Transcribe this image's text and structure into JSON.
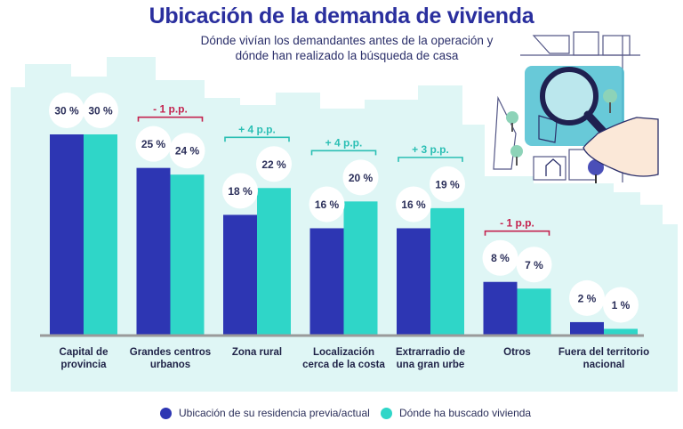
{
  "title": "Ubicación de la demanda de vivienda",
  "subtitle_lines": [
    "Dónde vivían los demandantes antes de la operación y",
    "dónde han realizado la búsqueda de casa"
  ],
  "colors": {
    "previa": "#2d36b3",
    "buscado": "#2fd6c8",
    "background_panel": "#dff6f5",
    "diff_positive": "#2bbfb4",
    "diff_negative": "#c4234f",
    "title": "#2a2f9e"
  },
  "icons": [
    "magnifier-icon",
    "hand-icon",
    "map-icon",
    "tree-icon",
    "house-icon"
  ],
  "chart_data": {
    "type": "bar",
    "title": "Ubicación de la demanda de vivienda",
    "categories": [
      [
        "Capital de",
        "provincia"
      ],
      [
        "Grandes centros",
        "urbanos"
      ],
      [
        "Zona rural"
      ],
      [
        "Localización",
        "cerca de la costa"
      ],
      [
        "Extrarradio de",
        "una gran urbe"
      ],
      [
        "Otros"
      ],
      [
        "Fuera del territorio",
        "nacional"
      ]
    ],
    "series": [
      {
        "name": "Ubicación de su residencia previa/actual",
        "values": [
          30,
          25,
          18,
          16,
          16,
          8,
          2
        ],
        "labels": [
          "30 %",
          "25 %",
          "18 %",
          "16 %",
          "16 %",
          "8 %",
          "2 %"
        ]
      },
      {
        "name": "Dónde ha buscado vivienda",
        "values": [
          30,
          24,
          22,
          20,
          19,
          7,
          1
        ],
        "labels": [
          "30 %",
          "24 %",
          "22 %",
          "20 %",
          "19 %",
          "7 %",
          "1 %"
        ]
      }
    ],
    "differences": [
      "",
      "- 1 p.p.",
      "+ 4 p.p.",
      "+ 4 p.p.",
      "+ 3 p.p.",
      "- 1 p.p.",
      ""
    ],
    "unit": "%",
    "ylim": [
      0,
      30
    ],
    "grid": false,
    "legend_position": "bottom"
  }
}
